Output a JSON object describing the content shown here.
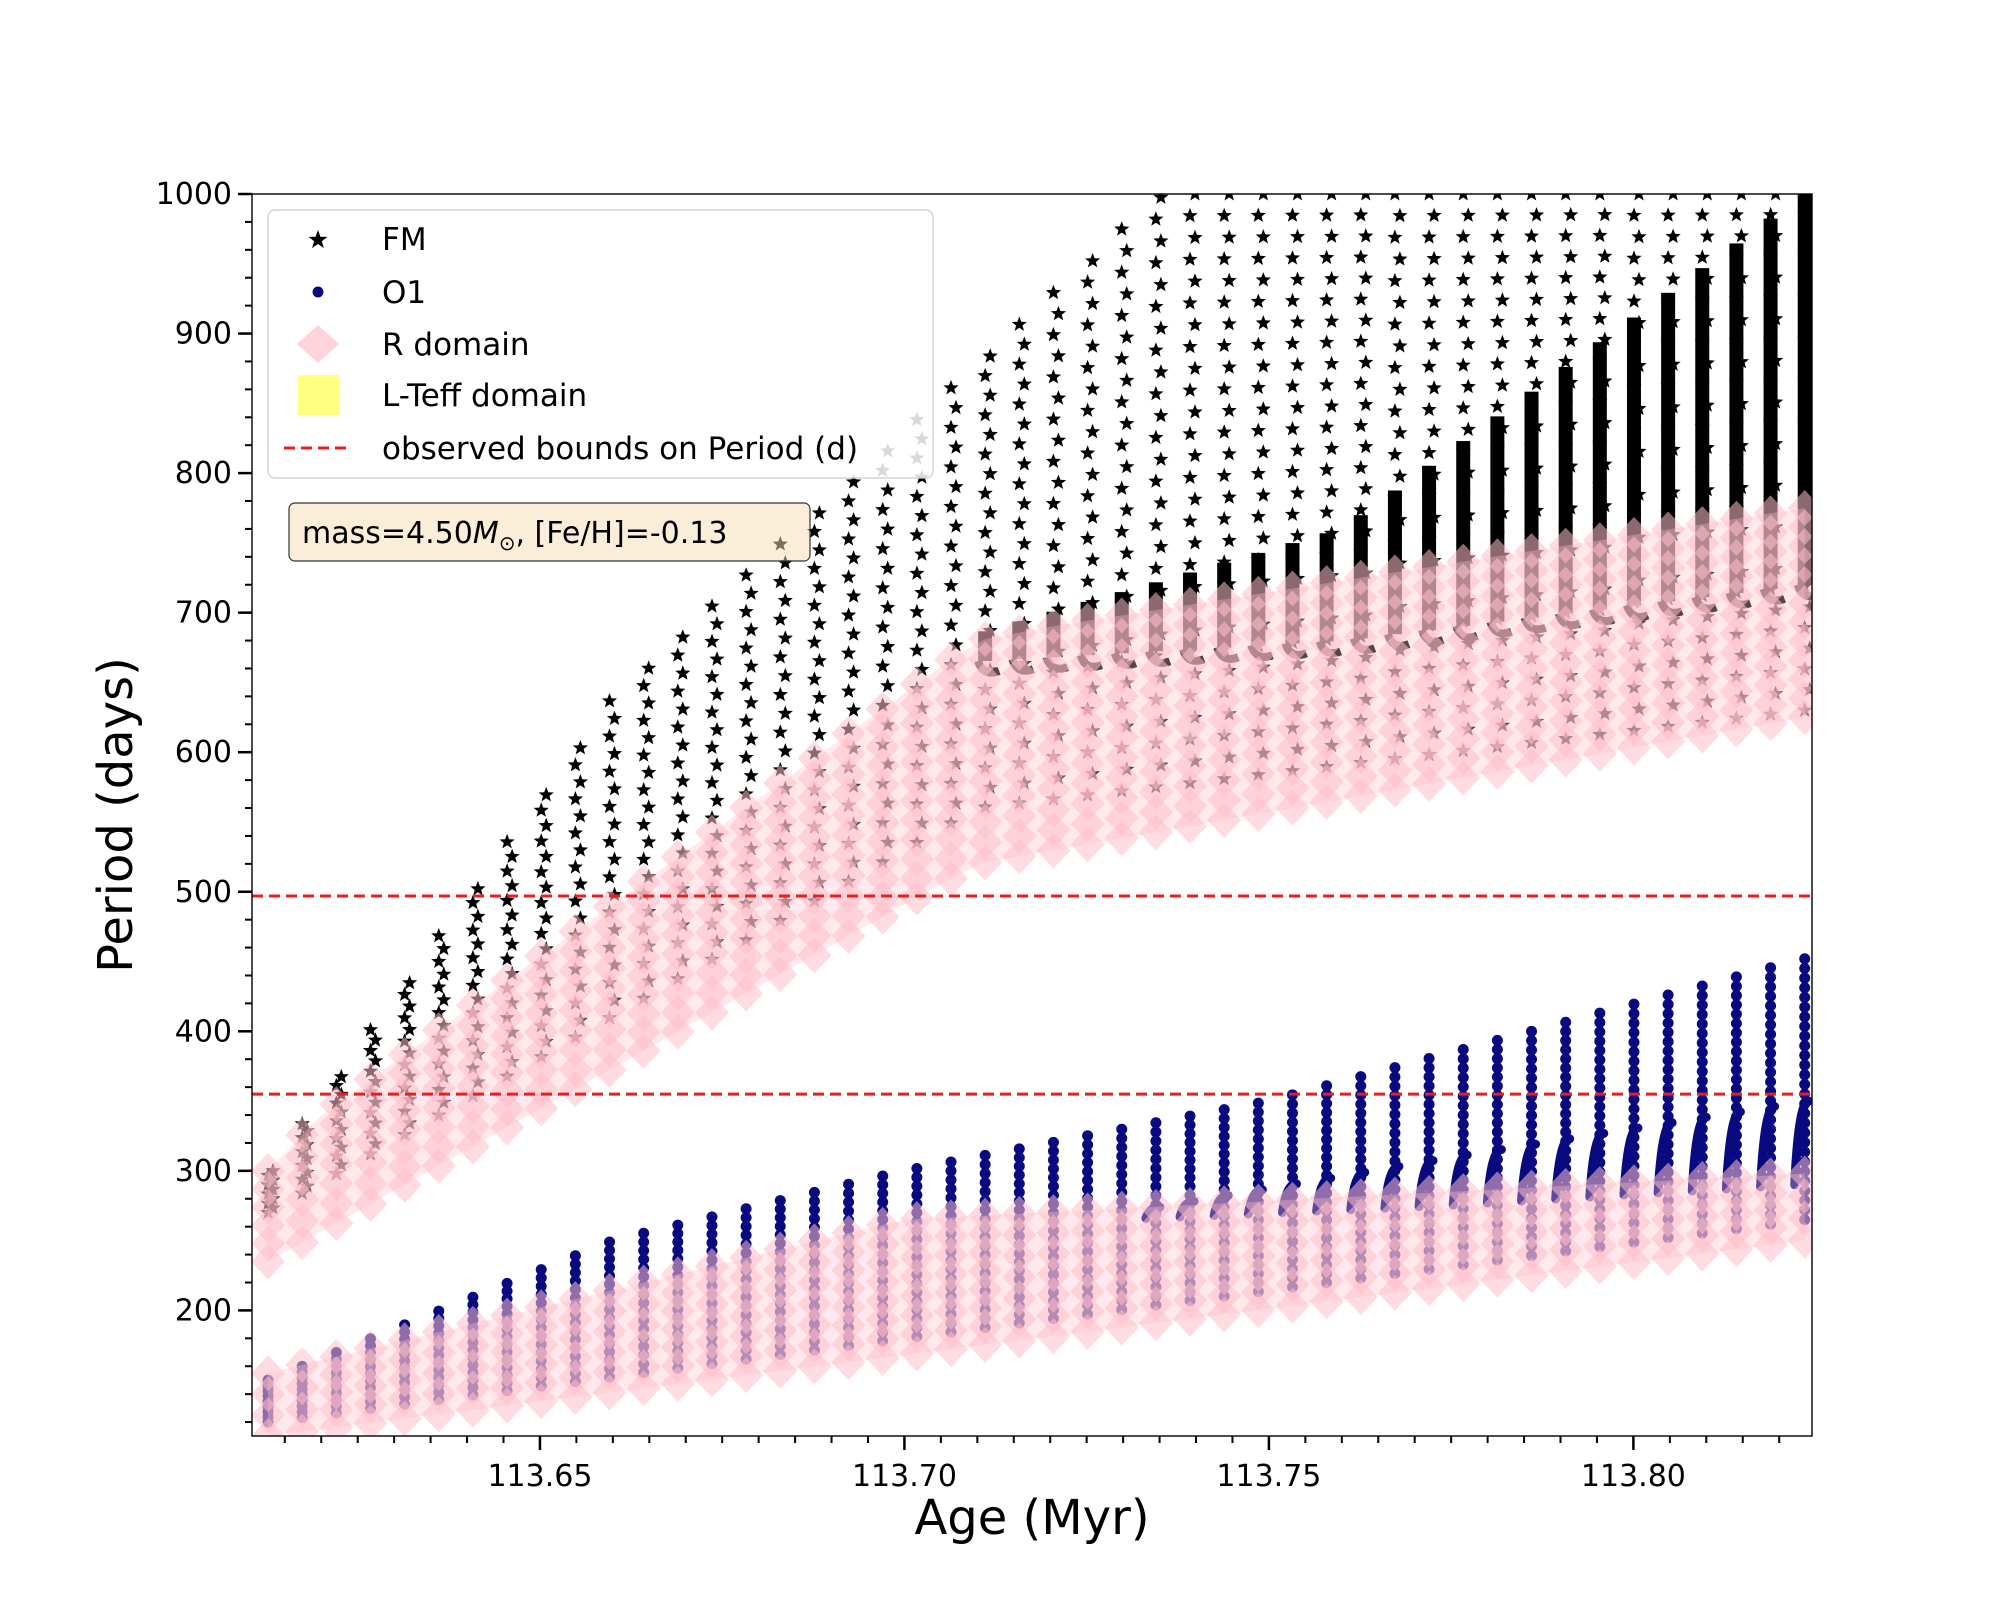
{
  "chart_data": {
    "type": "scatter",
    "xlabel": "Age (Myr)",
    "ylabel": "Period (days)",
    "xlim": [
      113.6105,
      113.8245
    ],
    "ylim": [
      110,
      1000
    ],
    "x_ticks": [
      113.65,
      113.7,
      113.75,
      113.8
    ],
    "x_tick_labels": [
      "113.65",
      "113.70",
      "113.75",
      "113.80"
    ],
    "x_minor_step": 0.005,
    "y_ticks": [
      200,
      300,
      400,
      500,
      600,
      700,
      800,
      900,
      1000
    ],
    "y_tick_labels": [
      "200",
      "300",
      "400",
      "500",
      "600",
      "700",
      "800",
      "900",
      "1000"
    ],
    "y_minor_step": 20,
    "grid": false,
    "legend_position": "top-left",
    "annotation": {
      "prefix": "mass=4.50",
      "symbol": "M",
      "subscript": "⊙",
      "suffix": ", [Fe/H]=-0.13"
    },
    "tracks": {
      "n_columns": 46,
      "x_start": 113.6127,
      "x_end": 113.8235
    },
    "series": [
      {
        "name": "FM",
        "marker": "star",
        "color": "#000000",
        "lower_envelope": [
          [
            113.6127,
            270
          ],
          [
            113.71,
            560
          ],
          [
            113.8235,
            630
          ]
        ],
        "upper_envelope": [
          [
            113.6127,
            300
          ],
          [
            113.66,
            640
          ],
          [
            113.7,
            830
          ],
          [
            113.735,
            1000
          ],
          [
            113.8235,
            1000
          ]
        ],
        "dense_band": [
          [
            113.71,
            665,
            685
          ],
          [
            113.76,
            680,
            760
          ],
          [
            113.8235,
            720,
            1000
          ]
        ]
      },
      {
        "name": "O1",
        "marker": "circle",
        "color": "#0a0a80",
        "lower_envelope": [
          [
            113.6127,
            120
          ],
          [
            113.8235,
            265
          ]
        ],
        "upper_envelope": [
          [
            113.6127,
            150
          ],
          [
            113.66,
            250
          ],
          [
            113.7,
            300
          ],
          [
            113.75,
            350
          ],
          [
            113.8235,
            452
          ]
        ],
        "dense_band": [
          [
            113.73,
            265,
            270
          ],
          [
            113.775,
            275,
            310
          ],
          [
            113.8235,
            290,
            350
          ]
        ]
      },
      {
        "name": "R domain",
        "marker": "diamond",
        "color": "#ffc0cb",
        "bands": [
          {
            "lower": [
              [
                113.6127,
                235
              ],
              [
                113.71,
                520
              ],
              [
                113.8235,
                625
              ]
            ],
            "upper": [
              [
                113.6127,
                300
              ],
              [
                113.62,
                340
              ],
              [
                113.71,
                680
              ],
              [
                113.72,
                690
              ],
              [
                113.8235,
                775
              ]
            ]
          },
          {
            "lower": [
              [
                113.6127,
                110
              ],
              [
                113.8235,
                250
              ]
            ],
            "upper": [
              [
                113.6127,
                155
              ],
              [
                113.7,
                265
              ],
              [
                113.8235,
                298
              ]
            ]
          }
        ]
      },
      {
        "name": "L-Teff domain",
        "marker": "square",
        "color": "#ffff80"
      }
    ],
    "hlines": [
      {
        "name": "observed bounds on Period (d)",
        "y": 355,
        "color": "#ee1c1c",
        "style": "dashed"
      },
      {
        "name": "observed bounds on Period (d)",
        "y": 497,
        "color": "#ee1c1c",
        "style": "dashed"
      }
    ]
  }
}
